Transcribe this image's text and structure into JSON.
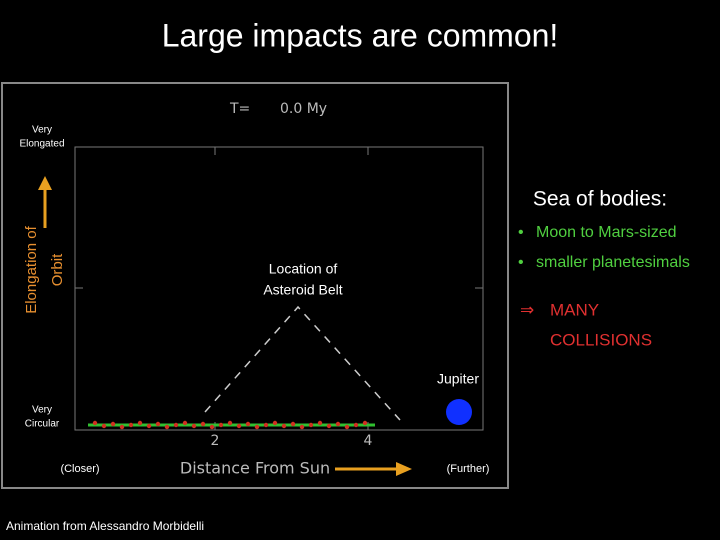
{
  "title": "Large impacts are common!",
  "plot": {
    "time_label": "T=",
    "time_value": "0.0 My",
    "y_top_label": [
      "Very",
      "Elongated"
    ],
    "y_bottom_label": [
      "Very",
      "Circular"
    ],
    "y_axis_label": [
      "Elongation of",
      "Orbit"
    ],
    "x_ticks": [
      "2",
      "4"
    ],
    "x_left_label": "(Closer)",
    "x_axis_label": "Distance From Sun",
    "x_right_label": "(Further)",
    "annotation": [
      "Location of",
      "Asteroid Belt"
    ],
    "planet_label": "Jupiter"
  },
  "side": {
    "heading": "Sea of bodies:",
    "bullets": [
      "Moon to Mars-sized",
      "smaller planetesimals"
    ],
    "conclusion": [
      "MANY",
      "COLLISIONS"
    ]
  },
  "credit": "Animation from Alessandro Morbidelli"
}
